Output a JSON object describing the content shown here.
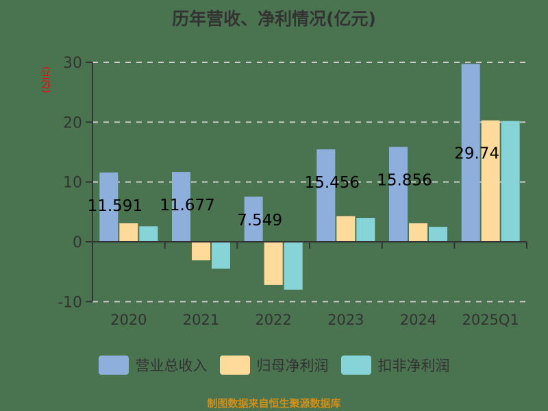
{
  "title": "历年营收、净利情况(亿元)",
  "y_axis_unit": "(亿元)",
  "footer": "制图数据来自恒生聚源数据库",
  "legend": [
    {
      "label": "营业总收入",
      "color": "#8eaedb"
    },
    {
      "label": "归母净利润",
      "color": "#ffdb9b"
    },
    {
      "label": "扣非净利润",
      "color": "#86d4d8"
    }
  ],
  "colors": {
    "background": "#4a7350",
    "axis": "#333333",
    "grid": "#cccccc",
    "text": "#333333",
    "unit_label": "#ff0000",
    "footer": "#d08f1a"
  },
  "chart_data": {
    "type": "bar",
    "title": "历年营收、净利情况(亿元)",
    "xlabel": "",
    "ylabel": "(亿元)",
    "categories": [
      "2020",
      "2021",
      "2022",
      "2023",
      "2024",
      "2025Q1"
    ],
    "series": [
      {
        "name": "营业总收入",
        "values": [
          11.591,
          11.677,
          7.549,
          15.456,
          15.856,
          29.74
        ]
      },
      {
        "name": "归母净利润",
        "values": [
          3.1,
          -3.1,
          -7.2,
          4.3,
          3.1,
          20.3
        ]
      },
      {
        "name": "扣非净利润",
        "values": [
          2.6,
          -4.5,
          -8.0,
          4.0,
          2.5,
          20.2
        ]
      }
    ],
    "data_labels": [
      "11.591",
      "11.677",
      "7.549",
      "15.456",
      "15.856",
      "29.74"
    ],
    "y_ticks": [
      -10,
      0,
      10,
      20,
      30
    ],
    "ylim": [
      -10,
      30
    ],
    "grid": true,
    "legend_position": "bottom"
  }
}
